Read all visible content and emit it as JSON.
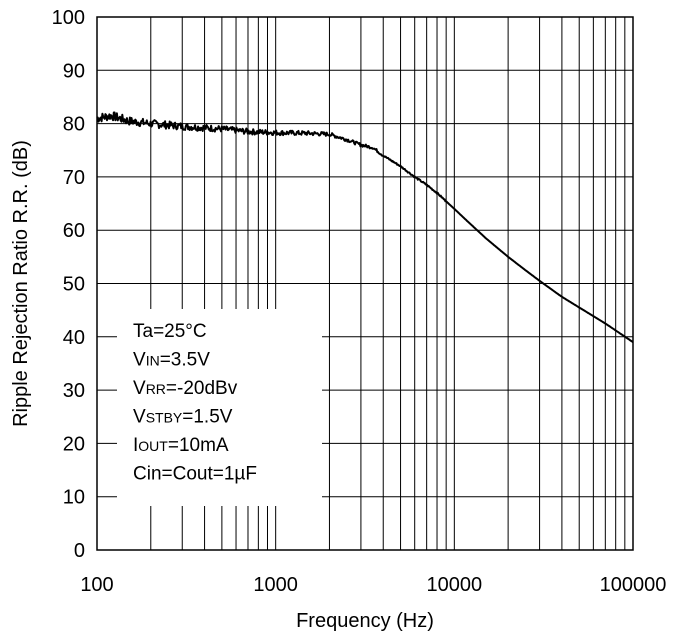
{
  "chart_data": {
    "type": "line",
    "xscale": "log",
    "xlim": [
      100,
      100000
    ],
    "ylim": [
      0,
      100
    ],
    "grid": true,
    "xlabel": "Frequency (Hz)",
    "ylabel": "Ripple Rejection Ratio R.R. (dB)",
    "x_ticks": [
      100,
      1000,
      10000,
      100000
    ],
    "x_tick_labels": [
      "100",
      "1000",
      "10000",
      "100000"
    ],
    "y_ticks": [
      0,
      10,
      20,
      30,
      40,
      50,
      60,
      70,
      80,
      90,
      100
    ],
    "y_tick_labels": [
      "0",
      "10",
      "20",
      "30",
      "40",
      "50",
      "60",
      "70",
      "80",
      "90",
      "100"
    ],
    "legend_placement": "bottom-left",
    "annotations": [
      {
        "main": "Ta=25°C",
        "sub": "",
        "rest": ""
      },
      {
        "main": "V",
        "sub": "IN",
        "rest": "=3.5V"
      },
      {
        "main": "V",
        "sub": "RR",
        "rest": "=-20dBv"
      },
      {
        "main": "V",
        "sub": "STBY",
        "rest": "=1.5V"
      },
      {
        "main": "I",
        "sub": "OUT",
        "rest": "=10mA"
      },
      {
        "main": "Cin=Cout=1µF",
        "sub": "",
        "rest": ""
      }
    ],
    "series": [
      {
        "x": [
          100,
          120,
          150,
          200,
          300,
          500,
          700,
          1000,
          1500,
          2000,
          2500,
          3000,
          3500,
          4000,
          5000,
          6000,
          7000,
          8000,
          10000,
          12000,
          15000,
          20000,
          25000,
          30000,
          40000,
          50000,
          70000,
          100000
        ],
        "y": [
          81,
          81.5,
          80.5,
          80,
          79.5,
          79,
          78.5,
          78.3,
          78.2,
          78,
          77,
          76,
          75.5,
          74,
          72,
          70,
          68.5,
          67,
          64,
          61.5,
          58.5,
          55,
          52.5,
          50.5,
          47.5,
          45.5,
          42.5,
          39
        ]
      }
    ],
    "line_color": "#000000"
  }
}
